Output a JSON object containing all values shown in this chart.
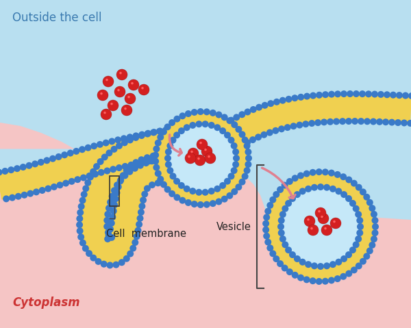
{
  "bg_outside_color": "#b8dff0",
  "bg_cytoplasm_color": "#f5c5c5",
  "membrane_yellow": "#f0d050",
  "membrane_blue": "#3a7ac8",
  "red_particle": "#d42020",
  "light_blue_vesicle": "#c5e8f8",
  "text_outside": "Outside the cell",
  "text_cytoplasm": "Cytoplasm",
  "text_membrane": "Cell  membrane",
  "text_vesicle": "Vesicle",
  "arrow_color": "#e08090",
  "figsize": [
    6.0,
    4.79
  ],
  "dpi": 100
}
